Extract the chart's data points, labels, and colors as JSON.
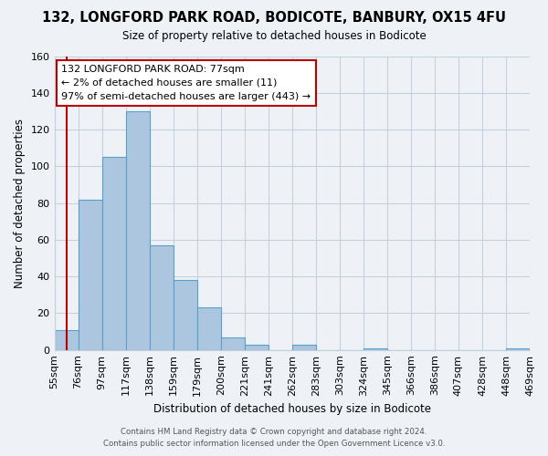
{
  "title": "132, LONGFORD PARK ROAD, BODICOTE, BANBURY, OX15 4FU",
  "subtitle": "Size of property relative to detached houses in Bodicote",
  "xlabel": "Distribution of detached houses by size in Bodicote",
  "ylabel": "Number of detached properties",
  "bin_edges": [
    "55sqm",
    "76sqm",
    "97sqm",
    "117sqm",
    "138sqm",
    "159sqm",
    "179sqm",
    "200sqm",
    "221sqm",
    "241sqm",
    "262sqm",
    "283sqm",
    "303sqm",
    "324sqm",
    "345sqm",
    "366sqm",
    "386sqm",
    "407sqm",
    "428sqm",
    "448sqm",
    "469sqm"
  ],
  "bar_heights": [
    11,
    82,
    105,
    130,
    57,
    38,
    23,
    7,
    3,
    0,
    3,
    0,
    0,
    1,
    0,
    0,
    0,
    0,
    0,
    1
  ],
  "bar_color": "#adc6e0",
  "bar_edge_color": "#5a9fc8",
  "vline_x": 0.5,
  "vline_color": "#bb0000",
  "ylim": [
    0,
    160
  ],
  "yticks": [
    0,
    20,
    40,
    60,
    80,
    100,
    120,
    140,
    160
  ],
  "annotation_title": "132 LONGFORD PARK ROAD: 77sqm",
  "annotation_line1": "← 2% of detached houses are smaller (11)",
  "annotation_line2": "97% of semi-detached houses are larger (443) →",
  "annotation_box_color": "#ffffff",
  "annotation_box_edge": "#bb0000",
  "footer1": "Contains HM Land Registry data © Crown copyright and database right 2024.",
  "footer2": "Contains public sector information licensed under the Open Government Licence v3.0.",
  "bg_color": "#eef2f7",
  "plot_bg_color": "#eef2f7",
  "grid_color": "#c5cfe0"
}
